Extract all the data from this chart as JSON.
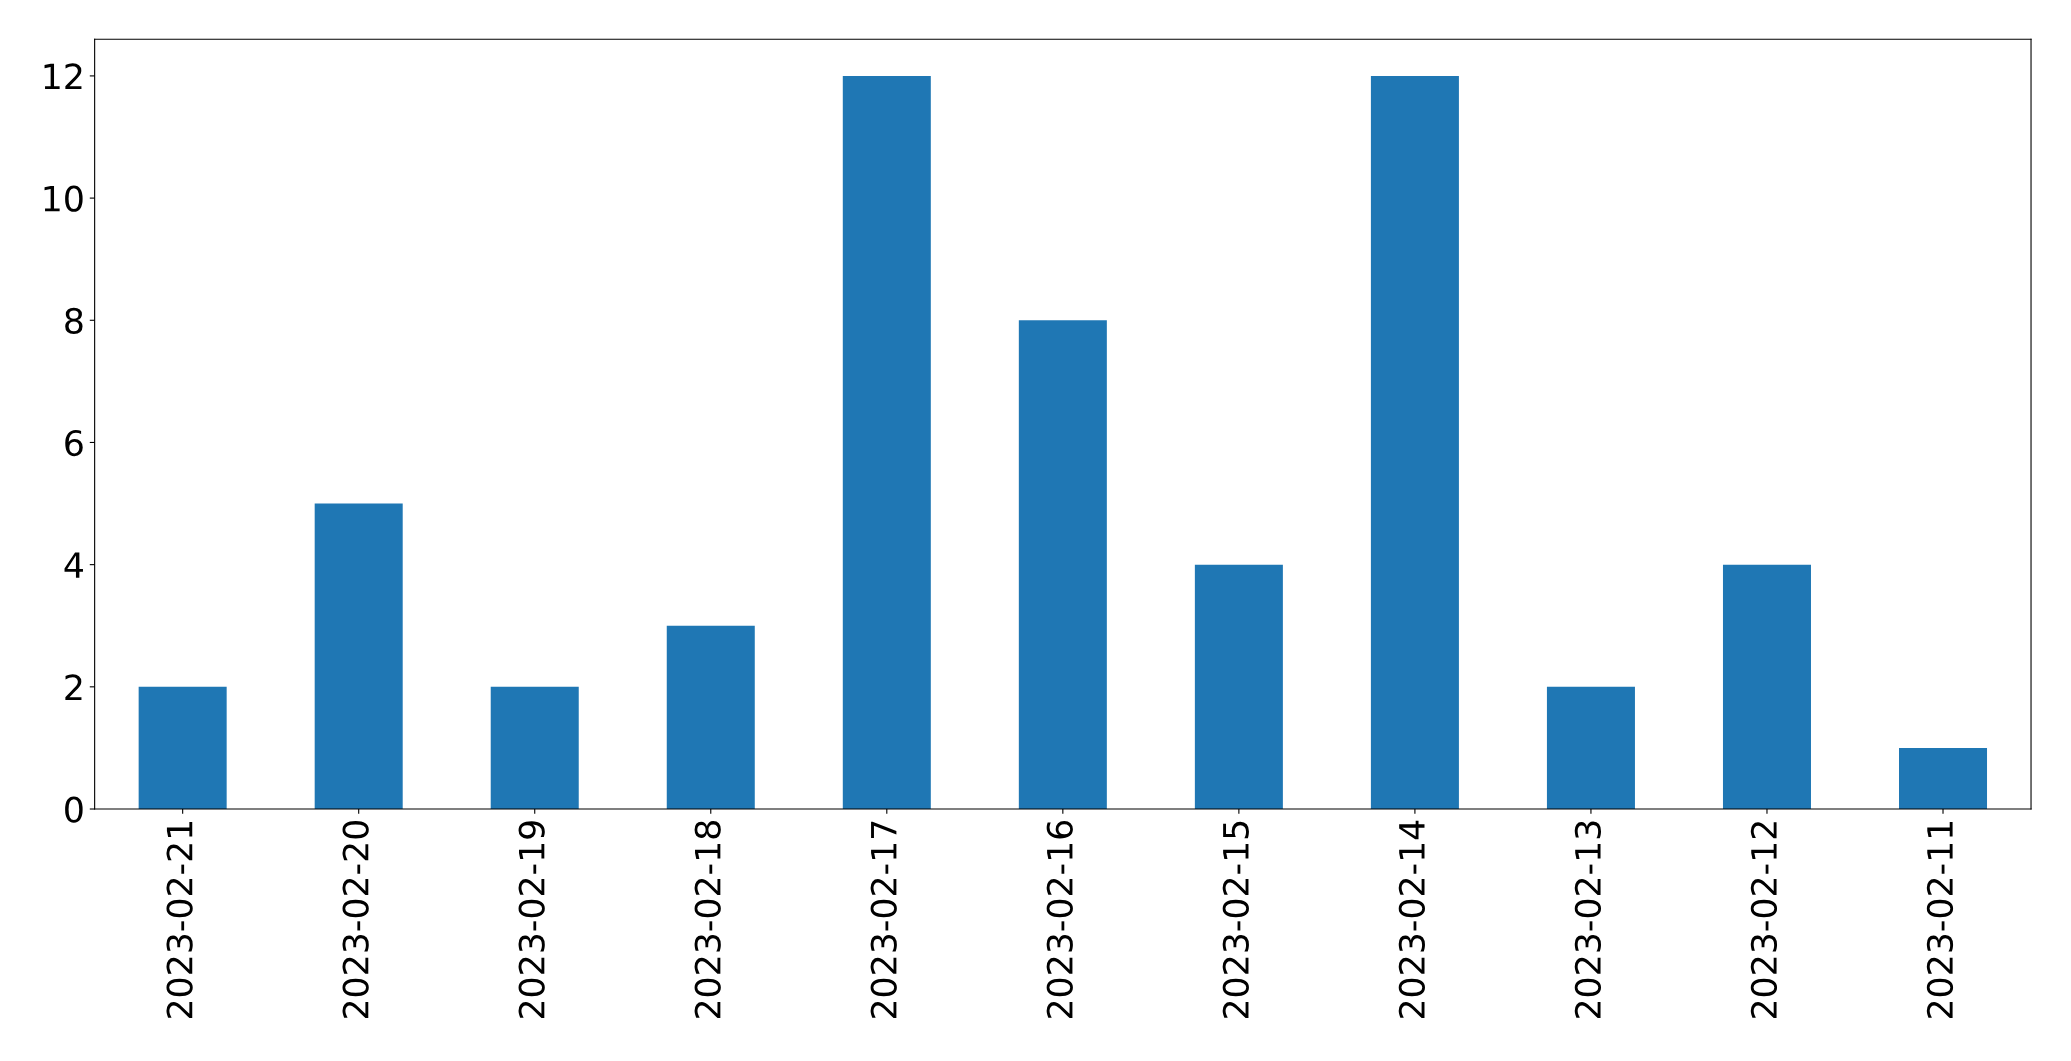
{
  "chart_data": {
    "type": "bar",
    "categories": [
      "2023-02-21",
      "2023-02-20",
      "2023-02-19",
      "2023-02-18",
      "2023-02-17",
      "2023-02-16",
      "2023-02-15",
      "2023-02-14",
      "2023-02-13",
      "2023-02-12",
      "2023-02-11"
    ],
    "values": [
      2,
      5,
      2,
      3,
      12,
      8,
      4,
      12,
      2,
      4,
      1
    ],
    "color": "#1f77b4",
    "ylim": [
      0,
      12.6
    ],
    "yticks": [
      0,
      2,
      4,
      6,
      8,
      10,
      12
    ],
    "grid": false,
    "legend": false
  }
}
